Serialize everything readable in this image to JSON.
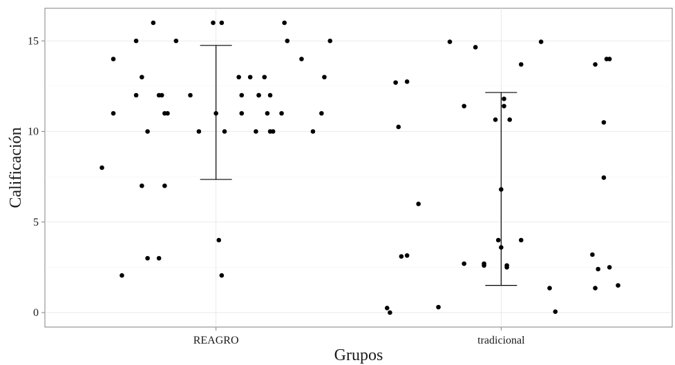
{
  "chart_data": {
    "type": "scatter",
    "title": "",
    "xlabel": "Grupos",
    "ylabel": "Calificación",
    "categories": [
      "REAGRO",
      "tradicional"
    ],
    "ylim": [
      -0.8,
      16.8
    ],
    "yticks": [
      0,
      5,
      10,
      15
    ],
    "grid": true,
    "legend": "none",
    "point_color": "#000000",
    "series": [
      {
        "category": "REAGRO",
        "points": [
          {
            "jitter": -0.4,
            "y": 8.0
          },
          {
            "jitter": -0.36,
            "y": 14.0
          },
          {
            "jitter": -0.36,
            "y": 11.0
          },
          {
            "jitter": -0.33,
            "y": 2.05
          },
          {
            "jitter": -0.28,
            "y": 15.0
          },
          {
            "jitter": -0.28,
            "y": 12.0
          },
          {
            "jitter": -0.26,
            "y": 13.0
          },
          {
            "jitter": -0.26,
            "y": 7.0
          },
          {
            "jitter": -0.24,
            "y": 10.0
          },
          {
            "jitter": -0.24,
            "y": 3.0
          },
          {
            "jitter": -0.22,
            "y": 16.0
          },
          {
            "jitter": -0.2,
            "y": 12.0
          },
          {
            "jitter": -0.19,
            "y": 12.0
          },
          {
            "jitter": -0.2,
            "y": 3.0
          },
          {
            "jitter": -0.18,
            "y": 11.0
          },
          {
            "jitter": -0.18,
            "y": 7.0
          },
          {
            "jitter": -0.17,
            "y": 11.0
          },
          {
            "jitter": -0.14,
            "y": 15.0
          },
          {
            "jitter": -0.09,
            "y": 12.0
          },
          {
            "jitter": -0.06,
            "y": 10.0
          },
          {
            "jitter": -0.01,
            "y": 16.0
          },
          {
            "jitter": 0.0,
            "y": 11.0
          },
          {
            "jitter": 0.01,
            "y": 4.0
          },
          {
            "jitter": 0.02,
            "y": 2.05
          },
          {
            "jitter": 0.02,
            "y": 16.0
          },
          {
            "jitter": 0.03,
            "y": 10.0
          },
          {
            "jitter": 0.08,
            "y": 13.0
          },
          {
            "jitter": 0.09,
            "y": 11.0
          },
          {
            "jitter": 0.09,
            "y": 12.0
          },
          {
            "jitter": 0.12,
            "y": 13.0
          },
          {
            "jitter": 0.14,
            "y": 10.0
          },
          {
            "jitter": 0.15,
            "y": 12.0
          },
          {
            "jitter": 0.15,
            "y": 12.0
          },
          {
            "jitter": 0.17,
            "y": 13.0
          },
          {
            "jitter": 0.18,
            "y": 11.0
          },
          {
            "jitter": 0.19,
            "y": 12.0
          },
          {
            "jitter": 0.19,
            "y": 10.0
          },
          {
            "jitter": 0.2,
            "y": 10.0
          },
          {
            "jitter": 0.23,
            "y": 11.0
          },
          {
            "jitter": 0.24,
            "y": 16.0
          },
          {
            "jitter": 0.25,
            "y": 15.0
          },
          {
            "jitter": 0.3,
            "y": 14.0
          },
          {
            "jitter": 0.34,
            "y": 10.0
          },
          {
            "jitter": 0.37,
            "y": 11.0
          },
          {
            "jitter": 0.38,
            "y": 13.0
          },
          {
            "jitter": 0.4,
            "y": 15.0
          }
        ],
        "error_bar": {
          "center": 11.05,
          "low": 7.35,
          "high": 14.75
        }
      },
      {
        "category": "tradicional",
        "points": [
          {
            "jitter": -0.4,
            "y": 0.25
          },
          {
            "jitter": -0.39,
            "y": 0.0
          },
          {
            "jitter": -0.37,
            "y": 12.7
          },
          {
            "jitter": -0.36,
            "y": 10.25
          },
          {
            "jitter": -0.35,
            "y": 3.1
          },
          {
            "jitter": -0.33,
            "y": 12.75
          },
          {
            "jitter": -0.33,
            "y": 3.15
          },
          {
            "jitter": -0.29,
            "y": 6.0
          },
          {
            "jitter": -0.22,
            "y": 0.3
          },
          {
            "jitter": -0.18,
            "y": 14.95
          },
          {
            "jitter": -0.13,
            "y": 2.7
          },
          {
            "jitter": -0.13,
            "y": 11.4
          },
          {
            "jitter": -0.09,
            "y": 14.65
          },
          {
            "jitter": -0.06,
            "y": 2.7
          },
          {
            "jitter": -0.06,
            "y": 2.6
          },
          {
            "jitter": -0.02,
            "y": 10.65
          },
          {
            "jitter": -0.01,
            "y": 4.0
          },
          {
            "jitter": 0.0,
            "y": 3.6
          },
          {
            "jitter": 0.0,
            "y": 6.8
          },
          {
            "jitter": 0.01,
            "y": 11.4
          },
          {
            "jitter": 0.01,
            "y": 11.8
          },
          {
            "jitter": 0.02,
            "y": 2.6
          },
          {
            "jitter": 0.02,
            "y": 2.5
          },
          {
            "jitter": 0.03,
            "y": 10.65
          },
          {
            "jitter": 0.07,
            "y": 13.7
          },
          {
            "jitter": 0.07,
            "y": 4.0
          },
          {
            "jitter": 0.14,
            "y": 14.95
          },
          {
            "jitter": 0.17,
            "y": 1.35
          },
          {
            "jitter": 0.19,
            "y": 0.05
          },
          {
            "jitter": 0.32,
            "y": 3.2
          },
          {
            "jitter": 0.33,
            "y": 13.7
          },
          {
            "jitter": 0.33,
            "y": 1.35
          },
          {
            "jitter": 0.34,
            "y": 2.4
          },
          {
            "jitter": 0.36,
            "y": 10.5
          },
          {
            "jitter": 0.36,
            "y": 7.45
          },
          {
            "jitter": 0.37,
            "y": 14.0
          },
          {
            "jitter": 0.38,
            "y": 14.0
          },
          {
            "jitter": 0.38,
            "y": 2.5
          },
          {
            "jitter": 0.41,
            "y": 1.5
          }
        ],
        "error_bar": {
          "center": 6.85,
          "low": 1.5,
          "high": 12.15
        }
      }
    ]
  }
}
